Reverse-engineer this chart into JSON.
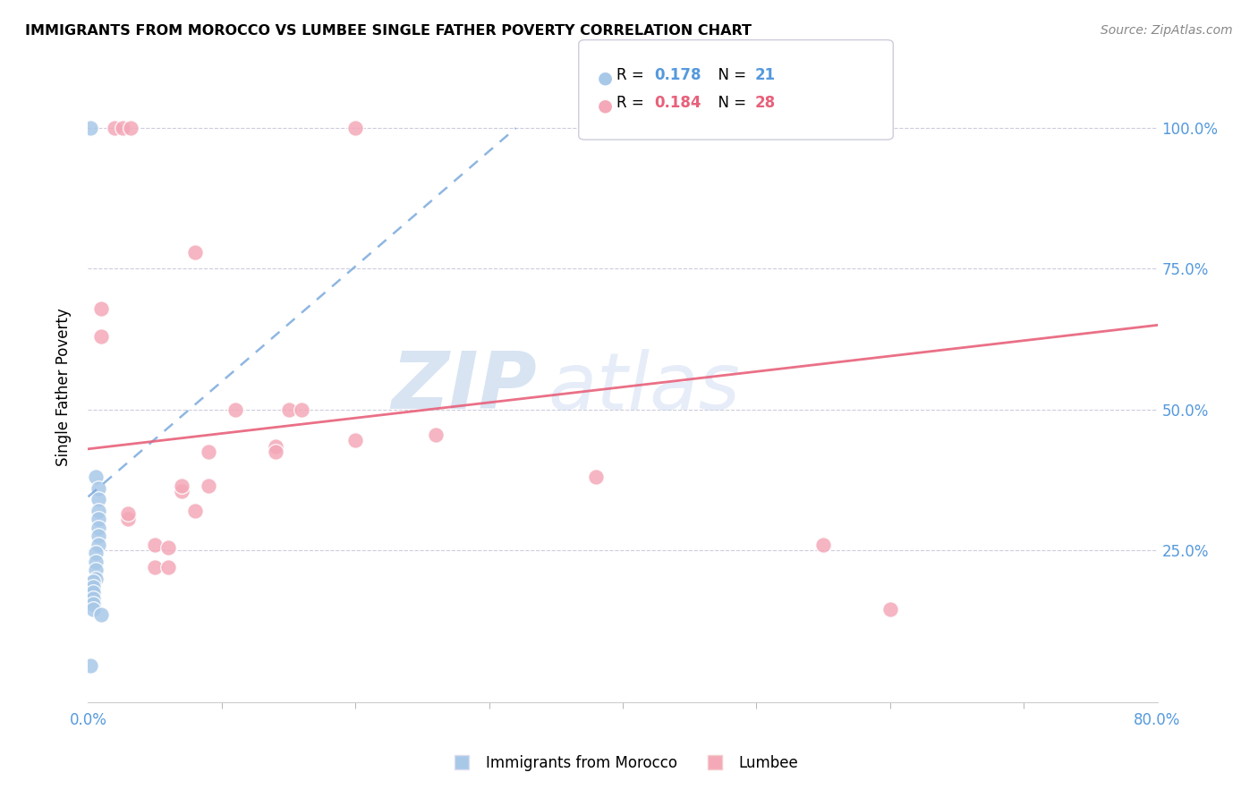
{
  "title": "IMMIGRANTS FROM MOROCCO VS LUMBEE SINGLE FATHER POVERTY CORRELATION CHART",
  "source": "Source: ZipAtlas.com",
  "ylabel": "Single Father Poverty",
  "right_yticklabels": [
    "",
    "25.0%",
    "50.0%",
    "75.0%",
    "100.0%"
  ],
  "legend_blue_r": "0.178",
  "legend_blue_n": "21",
  "legend_pink_r": "0.184",
  "legend_pink_n": "28",
  "watermark_zip": "ZIP",
  "watermark_atlas": "atlas",
  "blue_color": "#a8c8e8",
  "pink_color": "#f4a8b8",
  "blue_line_color": "#7aaadd",
  "pink_line_color": "#e8607a",
  "axis_label_color": "#5599dd",
  "blue_scatter": [
    [
      0.001,
      1.0
    ],
    [
      0.003,
      0.38
    ],
    [
      0.004,
      0.36
    ],
    [
      0.004,
      0.34
    ],
    [
      0.004,
      0.32
    ],
    [
      0.004,
      0.305
    ],
    [
      0.004,
      0.29
    ],
    [
      0.004,
      0.275
    ],
    [
      0.004,
      0.26
    ],
    [
      0.003,
      0.245
    ],
    [
      0.003,
      0.23
    ],
    [
      0.003,
      0.215
    ],
    [
      0.003,
      0.2
    ],
    [
      0.002,
      0.195
    ],
    [
      0.002,
      0.185
    ],
    [
      0.002,
      0.175
    ],
    [
      0.002,
      0.165
    ],
    [
      0.002,
      0.155
    ],
    [
      0.002,
      0.145
    ],
    [
      0.005,
      0.135
    ],
    [
      0.001,
      0.045
    ]
  ],
  "pink_scatter": [
    [
      0.01,
      1.0
    ],
    [
      0.013,
      1.0
    ],
    [
      0.016,
      1.0
    ],
    [
      0.1,
      1.0
    ],
    [
      0.005,
      0.68
    ],
    [
      0.005,
      0.63
    ],
    [
      0.04,
      0.78
    ],
    [
      0.055,
      0.5
    ],
    [
      0.075,
      0.5
    ],
    [
      0.08,
      0.5
    ],
    [
      0.13,
      0.455
    ],
    [
      0.1,
      0.445
    ],
    [
      0.07,
      0.435
    ],
    [
      0.07,
      0.425
    ],
    [
      0.045,
      0.425
    ],
    [
      0.04,
      0.32
    ],
    [
      0.025,
      0.26
    ],
    [
      0.015,
      0.305
    ],
    [
      0.015,
      0.315
    ],
    [
      0.025,
      0.22
    ],
    [
      0.03,
      0.22
    ],
    [
      0.03,
      0.255
    ],
    [
      0.035,
      0.355
    ],
    [
      0.035,
      0.365
    ],
    [
      0.045,
      0.365
    ],
    [
      0.19,
      0.38
    ],
    [
      0.275,
      0.26
    ],
    [
      0.3,
      0.145
    ]
  ],
  "blue_trend_x": [
    0.0,
    0.16
  ],
  "blue_trend_y": [
    0.345,
    1.0
  ],
  "pink_trend_x": [
    0.0,
    0.4
  ],
  "pink_trend_y": [
    0.43,
    0.65
  ],
  "xlim": [
    0.0,
    0.4
  ],
  "ylim": [
    -0.02,
    1.1
  ],
  "xticks_minor": [
    0.05,
    0.1,
    0.15,
    0.2,
    0.25,
    0.3,
    0.35
  ],
  "yticks": [
    0.0,
    0.25,
    0.5,
    0.75,
    1.0
  ]
}
